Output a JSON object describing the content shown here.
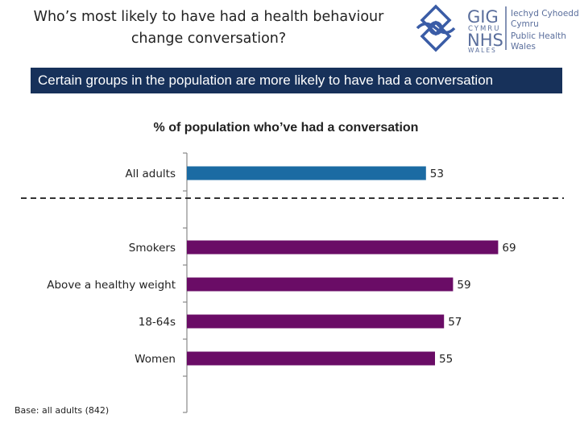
{
  "header": {
    "title": "Who’s most likely to have had a health behaviour change conversation?",
    "banner": "Certain groups in the population are more likely to have had a conversation"
  },
  "logo": {
    "icon": "celtic-knot-icon",
    "gig": "GIG",
    "cymru": "CYMRU",
    "nhs": "NHS",
    "wales": "WALES",
    "org_welsh_1": "Iechyd Cyhoeddus",
    "org_welsh_2": "Cymru",
    "org_english_1": "Public Health",
    "org_english_2": "Wales",
    "colors": {
      "knot": "#3a5ca6",
      "text": "#5a6e9c"
    }
  },
  "footer": {
    "base": "Base: all adults (842)"
  },
  "chart_data": {
    "type": "bar",
    "orientation": "horizontal",
    "title": "% of population who’ve had a conversation",
    "categories": [
      "All adults",
      "Smokers",
      "Above a healthy weight",
      "18-64s",
      "Women"
    ],
    "values": [
      53,
      69,
      59,
      57,
      55
    ],
    "value_labels": [
      "53",
      "69",
      "59",
      "57",
      "55"
    ],
    "bar_colors": [
      "#1b6ba3",
      "#6a0c66",
      "#6a0c66",
      "#6a0c66",
      "#6a0c66"
    ],
    "separator": "dashed line between All adults and the subgroups",
    "grid": false
  }
}
